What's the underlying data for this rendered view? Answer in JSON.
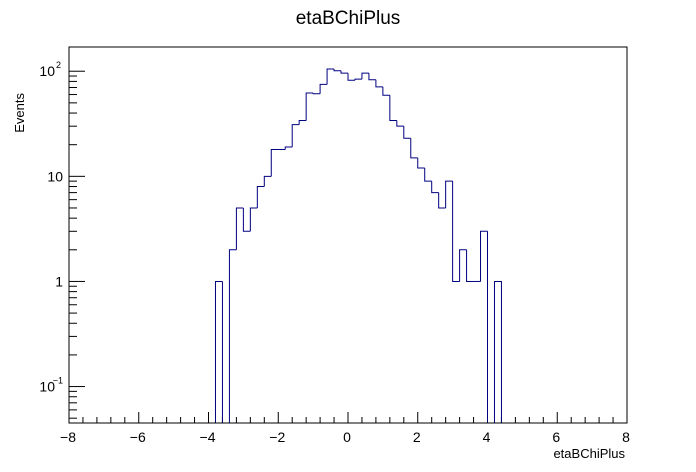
{
  "chart_data": {
    "type": "histogram",
    "title": "etaBChiPlus",
    "xlabel": "etaBChiPlus",
    "ylabel": "Events",
    "xlim": [
      -8,
      8
    ],
    "ylim": [
      0.045,
      170
    ],
    "yscale": "log",
    "bin_width": 0.2,
    "x_ticks": [
      "−8",
      "−6",
      "−4",
      "−2",
      "0",
      "2",
      "4",
      "6",
      "8"
    ],
    "y_ticks": [
      {
        "base": "10",
        "exp": "−1"
      },
      {
        "base": "1",
        "exp": ""
      },
      {
        "base": "10",
        "exp": ""
      },
      {
        "base": "10",
        "exp": "2"
      }
    ],
    "bins": [
      {
        "x": -3.8,
        "value": 1
      },
      {
        "x": -3.6,
        "value": 0
      },
      {
        "x": -3.4,
        "value": 2
      },
      {
        "x": -3.2,
        "value": 5
      },
      {
        "x": -3.0,
        "value": 3
      },
      {
        "x": -2.8,
        "value": 5
      },
      {
        "x": -2.6,
        "value": 8
      },
      {
        "x": -2.4,
        "value": 10
      },
      {
        "x": -2.2,
        "value": 18
      },
      {
        "x": -2.0,
        "value": 18
      },
      {
        "x": -1.8,
        "value": 19
      },
      {
        "x": -1.6,
        "value": 31
      },
      {
        "x": -1.4,
        "value": 34
      },
      {
        "x": -1.2,
        "value": 62
      },
      {
        "x": -1.0,
        "value": 61
      },
      {
        "x": -0.8,
        "value": 75
      },
      {
        "x": -0.6,
        "value": 105
      },
      {
        "x": -0.4,
        "value": 101
      },
      {
        "x": -0.2,
        "value": 96
      },
      {
        "x": 0.0,
        "value": 82
      },
      {
        "x": 0.2,
        "value": 84
      },
      {
        "x": 0.4,
        "value": 96
      },
      {
        "x": 0.6,
        "value": 83
      },
      {
        "x": 0.8,
        "value": 71
      },
      {
        "x": 1.0,
        "value": 59
      },
      {
        "x": 1.2,
        "value": 34
      },
      {
        "x": 1.4,
        "value": 30
      },
      {
        "x": 1.6,
        "value": 23
      },
      {
        "x": 1.8,
        "value": 15
      },
      {
        "x": 2.0,
        "value": 12
      },
      {
        "x": 2.2,
        "value": 9
      },
      {
        "x": 2.4,
        "value": 7
      },
      {
        "x": 2.6,
        "value": 5
      },
      {
        "x": 2.8,
        "value": 9
      },
      {
        "x": 3.0,
        "value": 1
      },
      {
        "x": 3.2,
        "value": 2
      },
      {
        "x": 3.4,
        "value": 1
      },
      {
        "x": 3.6,
        "value": 1
      },
      {
        "x": 3.8,
        "value": 3
      },
      {
        "x": 4.0,
        "value": 0
      },
      {
        "x": 4.2,
        "value": 1
      }
    ],
    "line_color": "#000080",
    "frame_color": "#000000"
  }
}
